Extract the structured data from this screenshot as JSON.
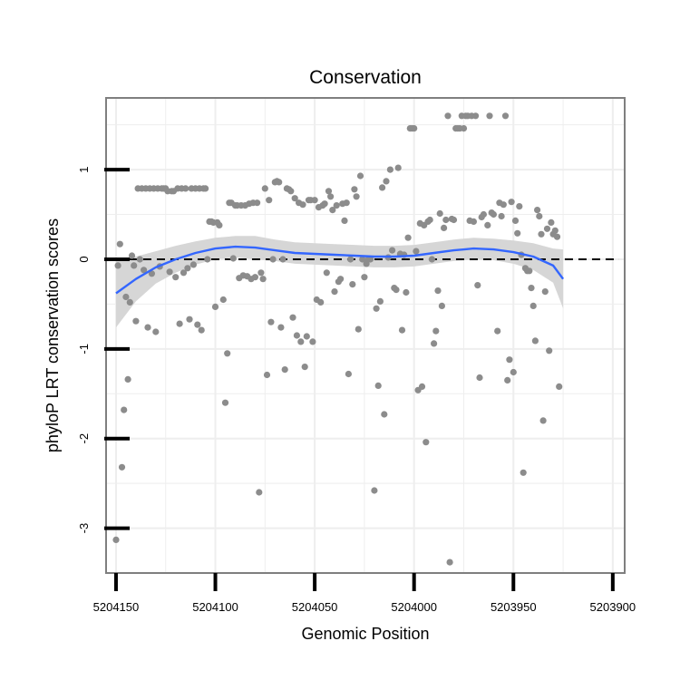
{
  "chart_data": {
    "type": "scatter",
    "title": "Conservation",
    "xlabel": "Genomic Position",
    "ylabel": "phyloP LRT conservation scores",
    "x_reversed": true,
    "xlim": [
      5204150,
      5203900
    ],
    "ylim": [
      -3.5,
      1.8
    ],
    "x_ticks": [
      5204150,
      5204100,
      5204050,
      5204000,
      5203950,
      5203900
    ],
    "x_tick_labels": [
      "5204150",
      "5204100",
      "5204050",
      "5204000",
      "5203950",
      "5203900"
    ],
    "y_ticks": [
      -3,
      -2,
      -1,
      0,
      1
    ],
    "y_tick_labels": [
      "-3",
      "-2",
      "-1",
      "0",
      "1"
    ],
    "grid": true,
    "reference_line": {
      "y": 0,
      "style": "dashed"
    },
    "colors": {
      "points": "#8c8c8c",
      "smooth": "#3366ff",
      "band": "#d4d4d4",
      "panel_border": "#7f7f7f",
      "grid": "#eeeeee"
    },
    "series": [
      {
        "type": "scatter",
        "points": [
          [
            5204150,
            -3.13
          ],
          [
            5204149,
            -0.07
          ],
          [
            5204148,
            0.17
          ],
          [
            5204147,
            -2.32
          ],
          [
            5204146,
            -1.68
          ],
          [
            5204145,
            -0.42
          ],
          [
            5204144,
            -1.34
          ],
          [
            5204143,
            -0.48
          ],
          [
            5204142,
            0.04
          ],
          [
            5204141,
            -0.07
          ],
          [
            5204140,
            -0.69
          ],
          [
            5204139,
            0.79
          ],
          [
            5204138,
            0.0
          ],
          [
            5204137,
            0.79
          ],
          [
            5204136,
            -0.12
          ],
          [
            5204135,
            0.79
          ],
          [
            5204134,
            -0.76
          ],
          [
            5204133,
            0.79
          ],
          [
            5204132,
            -0.16
          ],
          [
            5204131,
            0.79
          ],
          [
            5204130,
            -0.81
          ],
          [
            5204129,
            0.79
          ],
          [
            5204128,
            -0.08
          ],
          [
            5204127,
            0.79
          ],
          [
            5204126,
            0.79
          ],
          [
            5204125,
            0.79
          ],
          [
            5204124,
            0.76
          ],
          [
            5204123,
            -0.14
          ],
          [
            5204122,
            0.76
          ],
          [
            5204121,
            0.76
          ],
          [
            5204120,
            -0.2
          ],
          [
            5204119,
            0.79
          ],
          [
            5204118,
            -0.72
          ],
          [
            5204117,
            0.79
          ],
          [
            5204116,
            -0.15
          ],
          [
            5204115,
            0.79
          ],
          [
            5204114,
            -0.1
          ],
          [
            5204113,
            -0.67
          ],
          [
            5204112,
            0.79
          ],
          [
            5204111,
            -0.06
          ],
          [
            5204110,
            0.79
          ],
          [
            5204109,
            -0.73
          ],
          [
            5204108,
            0.79
          ],
          [
            5204107,
            -0.79
          ],
          [
            5204106,
            0.79
          ],
          [
            5204105,
            0.79
          ],
          [
            5204104,
            0.0
          ],
          [
            5204103,
            0.42
          ],
          [
            5204102,
            0.42
          ],
          [
            5204101,
            0.41
          ],
          [
            5204100,
            -0.53
          ],
          [
            5204099,
            0.41
          ],
          [
            5204098,
            0.38
          ],
          [
            5204096,
            -0.45
          ],
          [
            5204095,
            -1.6
          ],
          [
            5204094,
            -1.05
          ],
          [
            5204093,
            0.63
          ],
          [
            5204092,
            0.63
          ],
          [
            5204091,
            0.01
          ],
          [
            5204090,
            0.6
          ],
          [
            5204089,
            0.6
          ],
          [
            5204088,
            -0.21
          ],
          [
            5204087,
            0.6
          ],
          [
            5204086,
            -0.18
          ],
          [
            5204085,
            0.6
          ],
          [
            5204084,
            -0.19
          ],
          [
            5204083,
            0.62
          ],
          [
            5204082,
            -0.22
          ],
          [
            5204081,
            0.63
          ],
          [
            5204080,
            -0.2
          ],
          [
            5204079,
            0.63
          ],
          [
            5204078,
            -2.6
          ],
          [
            5204077,
            -0.15
          ],
          [
            5204076,
            -0.22
          ],
          [
            5204075,
            0.79
          ],
          [
            5204074,
            -1.29
          ],
          [
            5204073,
            0.66
          ],
          [
            5204072,
            -0.7
          ],
          [
            5204071,
            0.0
          ],
          [
            5204070,
            0.86
          ],
          [
            5204069,
            0.87
          ],
          [
            5204068,
            0.86
          ],
          [
            5204067,
            -0.76
          ],
          [
            5204066,
            0.0
          ],
          [
            5204065,
            -1.23
          ],
          [
            5204064,
            0.79
          ],
          [
            5204063,
            0.78
          ],
          [
            5204062,
            0.76
          ],
          [
            5204061,
            -0.65
          ],
          [
            5204060,
            0.68
          ],
          [
            5204059,
            -0.85
          ],
          [
            5204058,
            0.63
          ],
          [
            5204057,
            -0.92
          ],
          [
            5204056,
            0.61
          ],
          [
            5204055,
            -1.2
          ],
          [
            5204054,
            -0.86
          ],
          [
            5204053,
            0.66
          ],
          [
            5204052,
            0.66
          ],
          [
            5204051,
            -0.92
          ],
          [
            5204050,
            0.66
          ],
          [
            5204049,
            -0.45
          ],
          [
            5204048,
            0.58
          ],
          [
            5204047,
            -0.48
          ],
          [
            5204046,
            0.6
          ],
          [
            5204045,
            0.62
          ],
          [
            5204044,
            -0.15
          ],
          [
            5204043,
            0.76
          ],
          [
            5204042,
            0.7
          ],
          [
            5204041,
            0.55
          ],
          [
            5204040,
            -0.36
          ],
          [
            5204039,
            0.6
          ],
          [
            5204038,
            -0.25
          ],
          [
            5204037,
            -0.22
          ],
          [
            5204036,
            0.62
          ],
          [
            5204035,
            0.43
          ],
          [
            5204034,
            0.63
          ],
          [
            5204033,
            -1.28
          ],
          [
            5204032,
            0.0
          ],
          [
            5204031,
            -0.28
          ],
          [
            5204030,
            0.78
          ],
          [
            5204029,
            0.7
          ],
          [
            5204028,
            -0.78
          ],
          [
            5204027,
            0.93
          ],
          [
            5204026,
            0.0
          ],
          [
            5204025,
            -0.2
          ],
          [
            5204024,
            -0.05
          ],
          [
            5204023,
            0.0
          ],
          [
            5204022,
            0.0
          ],
          [
            5204020,
            -2.58
          ],
          [
            5204019,
            -0.55
          ],
          [
            5204018,
            -1.41
          ],
          [
            5204017,
            -0.47
          ],
          [
            5204016,
            0.8
          ],
          [
            5204015,
            -1.73
          ],
          [
            5204014,
            0.87
          ],
          [
            5204013,
            0.02
          ],
          [
            5204012,
            1.0
          ],
          [
            5204011,
            0.1
          ],
          [
            5204010,
            -0.32
          ],
          [
            5204009,
            -0.34
          ],
          [
            5204008,
            1.02
          ],
          [
            5204007,
            0.06
          ],
          [
            5204006,
            -0.79
          ],
          [
            5204005,
            0.05
          ],
          [
            5204004,
            -0.37
          ],
          [
            5204003,
            0.24
          ],
          [
            5204002,
            1.46
          ],
          [
            5204001,
            1.46
          ],
          [
            5204000,
            1.46
          ],
          [
            5203999,
            0.09
          ],
          [
            5203998,
            -1.46
          ],
          [
            5203997,
            0.4
          ],
          [
            5203996,
            -1.42
          ],
          [
            5203995,
            0.38
          ],
          [
            5203994,
            -2.04
          ],
          [
            5203993,
            0.42
          ],
          [
            5203992,
            0.44
          ],
          [
            5203991,
            0.0
          ],
          [
            5203990,
            -0.94
          ],
          [
            5203989,
            -0.8
          ],
          [
            5203988,
            -0.35
          ],
          [
            5203987,
            0.51
          ],
          [
            5203986,
            -0.52
          ],
          [
            5203985,
            0.35
          ],
          [
            5203984,
            0.44
          ],
          [
            5203983,
            1.6
          ],
          [
            5203982,
            -3.38
          ],
          [
            5203981,
            0.45
          ],
          [
            5203980,
            0.44
          ],
          [
            5203979,
            1.46
          ],
          [
            5203978,
            1.46
          ],
          [
            5203977,
            1.46
          ],
          [
            5203976,
            1.6
          ],
          [
            5203975,
            1.46
          ],
          [
            5203974,
            1.6
          ],
          [
            5203973,
            1.6
          ],
          [
            5203972,
            0.43
          ],
          [
            5203971,
            1.6
          ],
          [
            5203970,
            0.42
          ],
          [
            5203969,
            1.6
          ],
          [
            5203968,
            -0.29
          ],
          [
            5203967,
            -1.32
          ],
          [
            5203966,
            0.47
          ],
          [
            5203965,
            0.5
          ],
          [
            5203963,
            0.38
          ],
          [
            5203962,
            1.6
          ],
          [
            5203961,
            0.52
          ],
          [
            5203960,
            0.5
          ],
          [
            5203958,
            -0.8
          ],
          [
            5203957,
            0.63
          ],
          [
            5203956,
            0.48
          ],
          [
            5203955,
            0.61
          ],
          [
            5203954,
            1.6
          ],
          [
            5203953,
            -1.35
          ],
          [
            5203952,
            -1.12
          ],
          [
            5203951,
            0.64
          ],
          [
            5203950,
            -1.26
          ],
          [
            5203949,
            0.43
          ],
          [
            5203948,
            0.29
          ],
          [
            5203947,
            0.59
          ],
          [
            5203946,
            0.05
          ],
          [
            5203945,
            -2.38
          ],
          [
            5203944,
            -0.1
          ],
          [
            5203943,
            -0.13
          ],
          [
            5203942,
            -0.13
          ],
          [
            5203941,
            -0.32
          ],
          [
            5203940,
            -0.52
          ],
          [
            5203939,
            -0.91
          ],
          [
            5203938,
            0.55
          ],
          [
            5203937,
            0.48
          ],
          [
            5203936,
            0.28
          ],
          [
            5203935,
            -1.8
          ],
          [
            5203934,
            -0.36
          ],
          [
            5203933,
            0.34
          ],
          [
            5203932,
            -1.02
          ],
          [
            5203931,
            0.41
          ],
          [
            5203930,
            0.28
          ],
          [
            5203929,
            0.32
          ],
          [
            5203928,
            0.25
          ],
          [
            5203927,
            -1.42
          ]
        ]
      },
      {
        "type": "smooth",
        "x": [
          5204150,
          5204140,
          5204130,
          5204120,
          5204110,
          5204100,
          5204090,
          5204080,
          5204070,
          5204060,
          5204050,
          5204040,
          5204030,
          5204020,
          5204010,
          5204000,
          5203990,
          5203980,
          5203970,
          5203960,
          5203950,
          5203940,
          5203930,
          5203925
        ],
        "y": [
          -0.38,
          -0.22,
          -0.09,
          0.0,
          0.07,
          0.12,
          0.14,
          0.13,
          0.1,
          0.07,
          0.06,
          0.05,
          0.04,
          0.03,
          0.03,
          0.04,
          0.07,
          0.1,
          0.12,
          0.11,
          0.08,
          0.03,
          -0.07,
          -0.22
        ],
        "ymin": [
          -0.76,
          -0.47,
          -0.27,
          -0.15,
          -0.06,
          0.0,
          0.02,
          0.0,
          -0.02,
          -0.05,
          -0.06,
          -0.07,
          -0.08,
          -0.09,
          -0.09,
          -0.08,
          -0.05,
          -0.02,
          0.0,
          -0.01,
          -0.05,
          -0.12,
          -0.26,
          -0.55
        ],
        "ymax": [
          0.0,
          0.03,
          0.09,
          0.15,
          0.2,
          0.24,
          0.26,
          0.26,
          0.22,
          0.19,
          0.18,
          0.17,
          0.16,
          0.15,
          0.15,
          0.16,
          0.19,
          0.22,
          0.24,
          0.23,
          0.21,
          0.18,
          0.12,
          0.11
        ]
      }
    ]
  }
}
